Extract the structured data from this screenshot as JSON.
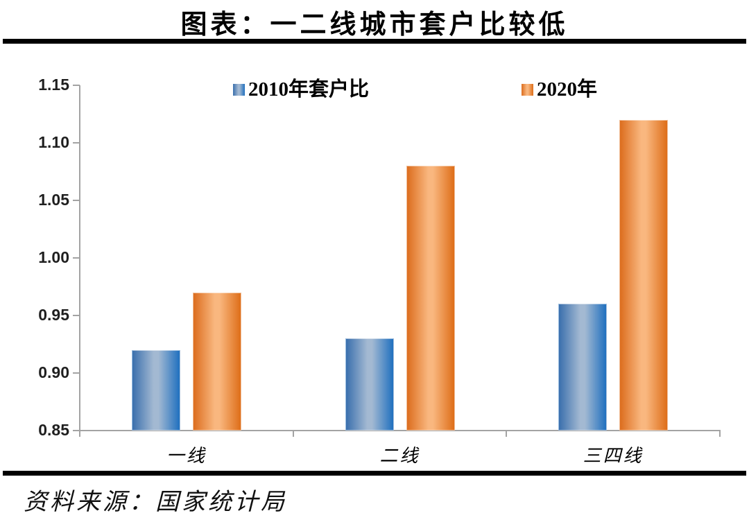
{
  "title": "图表：一二线城市套户比较低",
  "source": "资料来源：国家统计局",
  "chart_data": {
    "type": "bar",
    "categories": [
      "一线",
      "二线",
      "三四线"
    ],
    "series": [
      {
        "name": "2010年套户比",
        "values": [
          0.92,
          0.93,
          0.96
        ],
        "fill": {
          "left": "#3a6fad",
          "center": "#a3b9d2",
          "right": "#2070bf"
        }
      },
      {
        "name": "2020年",
        "values": [
          0.97,
          1.08,
          1.12
        ],
        "fill": {
          "left": "#dc6d1e",
          "center": "#f9b77f",
          "right": "#de6e19"
        }
      }
    ],
    "ylim": [
      0.85,
      1.15
    ],
    "ytick_step": 0.05,
    "yticks": [
      "1.15",
      "1.10",
      "1.05",
      "1.00",
      "0.95",
      "0.90",
      "0.85"
    ],
    "grid": "off",
    "legend_position": "top",
    "axis_color": "#a3a3a3"
  }
}
